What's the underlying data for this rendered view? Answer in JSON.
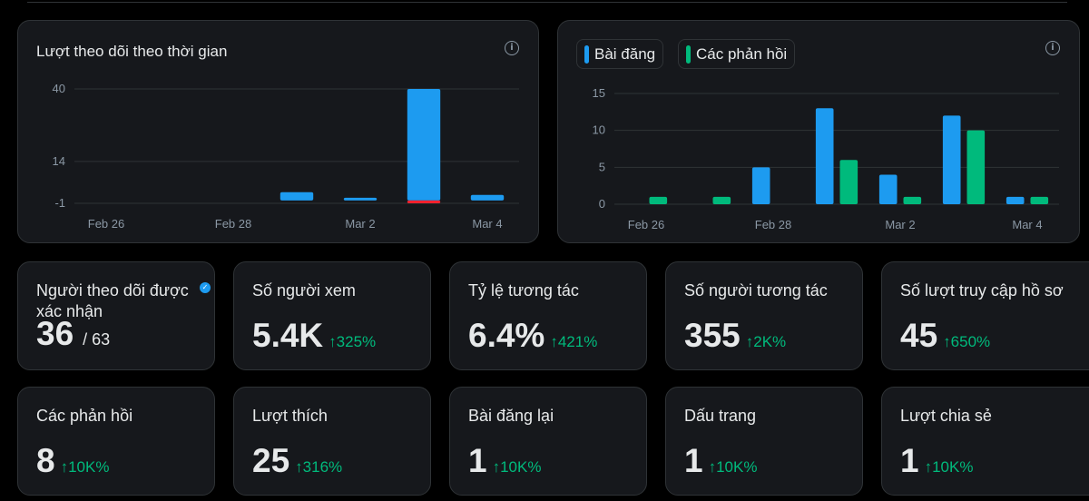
{
  "follower_chart": {
    "title": "Lượt theo dõi theo thời gian",
    "info_icon": "info-icon",
    "chart_data": {
      "type": "bar",
      "categories": [
        "Feb 26",
        "Feb 27",
        "Feb 28",
        "Mar 1",
        "Mar 2",
        "Mar 3",
        "Mar 4"
      ],
      "x_tick_labels": [
        "Feb 26",
        "Feb 28",
        "Mar 2",
        "Mar 4"
      ],
      "y_tick_labels": [
        "40",
        "14",
        "-1"
      ],
      "series": [
        {
          "values": [
            0,
            0,
            0,
            3,
            1,
            40,
            2
          ],
          "color": "#1d9bf0"
        },
        {
          "values": [
            0,
            0,
            0,
            0,
            0,
            -1,
            0
          ],
          "color": "#f4212e"
        }
      ],
      "ylim": [
        -1,
        40
      ],
      "grid": true
    }
  },
  "posts_chart": {
    "legend": [
      {
        "label": "Bài đăng",
        "color": "#1d9bf0"
      },
      {
        "label": "Các phản hồi",
        "color": "#00ba7c"
      }
    ],
    "info_icon": "info-icon",
    "chart_data": {
      "type": "bar",
      "categories": [
        "Feb 26",
        "Feb 27",
        "Feb 28",
        "Mar 1",
        "Mar 2",
        "Mar 3",
        "Mar 4"
      ],
      "x_tick_labels": [
        "Feb 26",
        "Feb 28",
        "Mar 2",
        "Mar 4"
      ],
      "y_tick_labels": [
        "15",
        "10",
        "5",
        "0"
      ],
      "series": [
        {
          "name": "Bài đăng",
          "values": [
            0,
            0,
            5,
            13,
            4,
            12,
            1
          ],
          "color": "#1d9bf0"
        },
        {
          "name": "Các phản hồi",
          "values": [
            1,
            1,
            0,
            6,
            1,
            10,
            1
          ],
          "color": "#00ba7c"
        }
      ],
      "ylim": [
        0,
        15
      ],
      "grid": true,
      "legend_position": "top-left"
    }
  },
  "stats": [
    {
      "label": "Người theo dõi được xác nhận",
      "value": "36",
      "total": "/ 63",
      "verified_icon": "verified-badge-icon"
    },
    {
      "label": "Số người xem",
      "value": "5.4K",
      "change": "↑325%"
    },
    {
      "label": "Tỷ lệ tương tác",
      "value": "6.4%",
      "change": "↑421%"
    },
    {
      "label": "Số người tương tác",
      "value": "355",
      "change": "↑2K%"
    },
    {
      "label": "Số lượt truy cập hồ sơ",
      "value": "45",
      "change": "↑650%"
    },
    {
      "label": "Các phản hồi",
      "value": "8",
      "change": "↑10K%"
    },
    {
      "label": "Lượt thích",
      "value": "25",
      "change": "↑316%"
    },
    {
      "label": "Bài đăng lại",
      "value": "1",
      "change": "↑10K%"
    },
    {
      "label": "Dấu trang",
      "value": "1",
      "change": "↑10K%"
    },
    {
      "label": "Lượt chia sẻ",
      "value": "1",
      "change": "↑10K%"
    }
  ]
}
